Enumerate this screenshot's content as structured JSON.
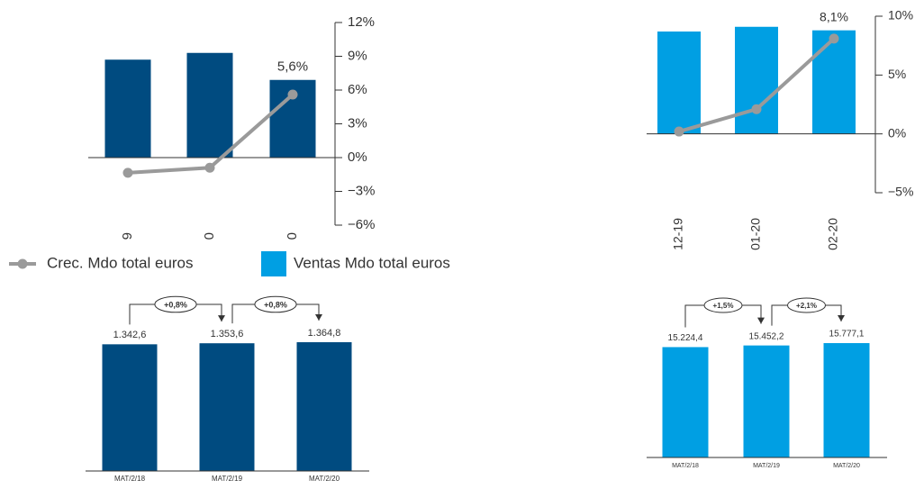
{
  "chart_data": [
    {
      "type": "combo",
      "categories": [
        "9",
        "0",
        "0"
      ],
      "ylim": [
        -6,
        12
      ],
      "yticks": [
        {
          "value": 12,
          "label": "12%"
        },
        {
          "value": 9,
          "label": "9%"
        },
        {
          "value": 6,
          "label": "6%"
        },
        {
          "value": 3,
          "label": "3%"
        },
        {
          "value": 0,
          "label": "0%"
        },
        {
          "value": -3,
          "label": "−3%"
        },
        {
          "value": -6,
          "label": "−6%"
        }
      ],
      "series": [
        {
          "type": "bar",
          "color": "#004b80",
          "values": [
            8.7,
            9.3,
            6.9
          ]
        },
        {
          "type": "line",
          "color": "#9a9a9a",
          "values": [
            -1.35,
            -0.9,
            5.6
          ],
          "value_labels": [
            null,
            null,
            "5,6%"
          ]
        }
      ]
    },
    {
      "type": "combo",
      "categories": [
        "12-19",
        "01-20",
        "02-20"
      ],
      "ylim": [
        -5,
        10
      ],
      "yticks": [
        {
          "value": 10,
          "label": "10%"
        },
        {
          "value": 5,
          "label": "5%"
        },
        {
          "value": 0,
          "label": "0%"
        },
        {
          "value": -5,
          "label": "−5%"
        }
      ],
      "series": [
        {
          "type": "bar",
          "name": "Ventas Mdo total euros",
          "color": "#009fe3",
          "values": [
            8.7,
            9.1,
            8.8
          ]
        },
        {
          "type": "line",
          "name": "Crec. Mdo total euros",
          "color": "#9a9a9a",
          "values": [
            0.2,
            2.1,
            8.1
          ],
          "value_labels": [
            null,
            null,
            "8,1%"
          ]
        }
      ]
    },
    {
      "type": "bar",
      "categories": [
        "MAT/2/18",
        "MAT/2/19",
        "MAT/2/20"
      ],
      "values": [
        1342.6,
        1353.6,
        1364.8
      ],
      "value_labels": [
        "1.342,6",
        "1.353,6",
        "1.364,8"
      ],
      "growth_labels": [
        "+0,8%",
        "+0,8%"
      ],
      "color": "#004b80"
    },
    {
      "type": "bar",
      "categories": [
        "MAT/2/18",
        "MAT/2/19",
        "MAT/2/20"
      ],
      "values": [
        15224.4,
        15452.2,
        15777.1
      ],
      "value_labels": [
        "15.224,4",
        "15.452,2",
        "15.777,1"
      ],
      "growth_labels": [
        "+1,5%",
        "+2,1%"
      ],
      "color": "#009fe3"
    }
  ]
}
